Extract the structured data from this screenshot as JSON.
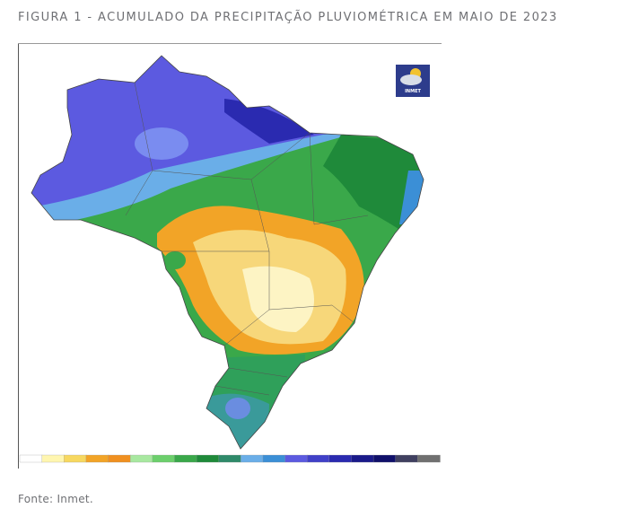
{
  "figure": {
    "title": "FIGURA 1 - ACUMULADO DA PRECIPITAÇÃO PLUVIOMÉTRICA EM MAIO DE 2023",
    "logo": "INMET",
    "source": "Fonte: Inmet."
  }
}
